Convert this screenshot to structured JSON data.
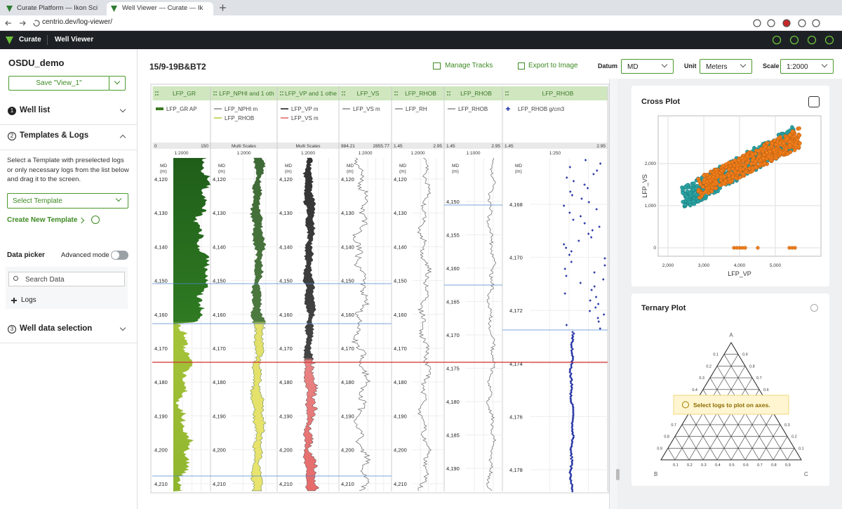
{
  "browser": {
    "tabs": [
      "Curate Platform — Ikon Science",
      "Well Viewer — Curate — Ikon Sc"
    ],
    "url": "centrio.dev/log-viewer/"
  },
  "app": {
    "brand": "Curate",
    "page": "Well Viewer"
  },
  "sidebar": {
    "project": "OSDU_demo",
    "save": "Save \"View_1\"",
    "steps": [
      {
        "num": "1",
        "label": "Well list"
      },
      {
        "num": "2",
        "label": "Templates & Logs"
      },
      {
        "num": "3",
        "label": "Well data selection"
      }
    ],
    "description": "Select a Template with preselected logs or only necessary logs from the list below and drag it to the screen.",
    "selectTemplate": "Select Template",
    "createTemplate": "Create New Template",
    "dataPicker": "Data picker",
    "advancedMode": "Advanced mode",
    "search": "Search Data",
    "logs": "Logs"
  },
  "toolbar": {
    "well": "15/9-19B&BT2",
    "manageTracks": "Manage Tracks",
    "export": "Export to Image",
    "datumLabel": "Datum",
    "datum": "MD",
    "unitLabel": "Unit",
    "unit": "Meters",
    "scaleLabel": "Scale",
    "scale": "1:2000"
  },
  "depthHeader": {
    "label": "MD",
    "unit": "(m)"
  },
  "tracks": [
    {
      "title": "LFP_GR",
      "legend": [
        "LFP_GR AP"
      ],
      "range": [
        0,
        150
      ],
      "scale": "1:2000",
      "depths": [
        "4,120",
        "4,130",
        "4,140",
        "4,150",
        "4,160",
        "4,170",
        "4,180",
        "4,190",
        "4,200",
        "4,210"
      ]
    },
    {
      "title": "LFP_NPHI and 1 oth",
      "legend": [
        "LFP_NPHI m",
        "LFP_RHOB"
      ],
      "multi": "Multi Scales",
      "scale": "1:2000",
      "depths": [
        "4,120",
        "4,130",
        "4,140",
        "4,150",
        "4,160",
        "4,170",
        "4,180",
        "4,190",
        "4,200",
        "4,210"
      ]
    },
    {
      "title": "LFP_VP and 1 othe",
      "legend": [
        "LFP_VP m",
        "LFP_VS m"
      ],
      "multi": "Multi Scales",
      "scale": "1:2000",
      "depths": [
        "4,120",
        "4,130",
        "4,140",
        "4,150",
        "4,160",
        "4,170",
        "4,180",
        "4,190",
        "4,200",
        "4,210"
      ]
    },
    {
      "title": "LFP_VS",
      "legend": [
        "LFP_VS m"
      ],
      "range": [
        984.21,
        2855.77
      ],
      "scale": "1:2000",
      "depths": [
        "4,120",
        "4,130",
        "4,140",
        "4,150",
        "4,160",
        "4,170",
        "4,180",
        "4,190",
        "4,200",
        "4,210"
      ]
    },
    {
      "title": "LFP_RHOB",
      "legend": [
        "LFP_RH"
      ],
      "range": [
        1.45,
        2.95
      ],
      "scale": "1:2000",
      "depths": [
        "4,120",
        "4,130",
        "4,140",
        "4,150",
        "4,160",
        "4,170",
        "4,180",
        "4,190",
        "4,200",
        "4,210"
      ]
    },
    {
      "title": "LFP_RHOB",
      "legend": [
        "LFP_RHOB"
      ],
      "range": [
        1.45,
        2.95
      ],
      "scale": "1:1000",
      "depths": [
        "4,150",
        "4,155",
        "4,160",
        "4,165",
        "4,170",
        "4,175",
        "4,180",
        "4,185",
        "4,190"
      ]
    },
    {
      "title": "LFP_RHOB",
      "legend": [
        "LFP_RHOB g/cm3"
      ],
      "range": [
        1.45,
        2.95
      ],
      "scale": "1:250",
      "depths": [
        "4,168",
        "4,170",
        "4,172",
        "4,174",
        "4,176",
        "4,178"
      ]
    }
  ],
  "crossPlot": {
    "title": "Cross Plot",
    "xLabel": "LFP_VP",
    "yLabel": "LFP_VS",
    "xticks": [
      "2,000",
      "3,000",
      "4,000",
      "5,000"
    ],
    "yticks": [
      "2,000",
      "1,000",
      "0"
    ]
  },
  "ternaryPlot": {
    "title": "Ternary Plot",
    "vertices": [
      "A",
      "B",
      "C"
    ],
    "ticks": [
      0.1,
      0.2,
      0.3,
      0.4,
      0.5,
      0.6,
      0.7,
      0.8,
      0.9
    ],
    "message": "Select logs to plot on axes."
  }
}
